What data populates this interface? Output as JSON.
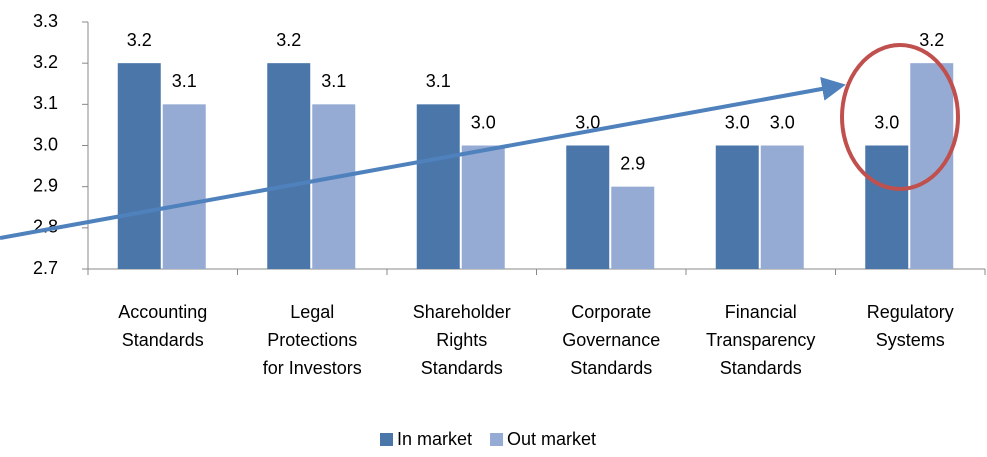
{
  "chart_data": {
    "type": "bar",
    "categories": [
      "Accounting\nStandards",
      "Legal\nProtections\nfor Investors",
      "Shareholder\nRights\nStandards",
      "Corporate\nGovernance\nStandards",
      "Financial\nTransparency\nStandards",
      "Regulatory\nSystems"
    ],
    "series": [
      {
        "name": "In market",
        "color": "#4a76aa",
        "values": [
          3.2,
          3.2,
          3.1,
          3.0,
          3.0,
          3.0
        ],
        "value_labels": [
          "3.2",
          "3.2",
          "3.1",
          "3.0",
          "3.0",
          "3.0"
        ]
      },
      {
        "name": "Out market",
        "color": "#95abd4",
        "values": [
          3.1,
          3.1,
          3.0,
          2.9,
          3.0,
          3.2
        ],
        "value_labels": [
          "3.1",
          "3.1",
          "3.0",
          "2.9",
          "3.0",
          "3.2"
        ]
      }
    ],
    "ylim": [
      2.7,
      3.3
    ],
    "yticks": [
      2.7,
      2.8,
      2.9,
      {
        "value": 3.0,
        "label": "3.0"
      },
      3.1,
      3.2,
      3.3
    ],
    "grid": false,
    "legend": "bottom"
  }
}
